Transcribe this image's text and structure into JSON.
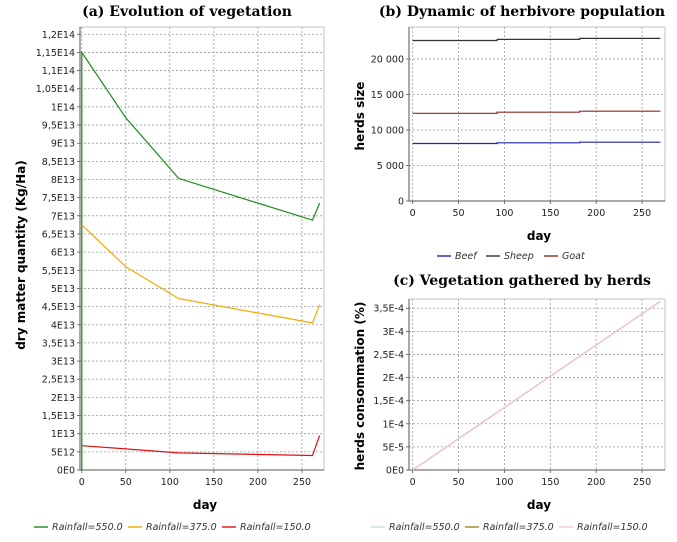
{
  "chart_data": [
    {
      "id": "a",
      "type": "line",
      "title": "(a) Evolution of vegetation",
      "xlabel": "day",
      "ylabel": "dry matter quantity (Kg/Ha)",
      "xlim": [
        -2,
        275
      ],
      "ylim": [
        0,
        122000000000000.0
      ],
      "xticks": [
        0,
        50,
        100,
        150,
        200,
        250
      ],
      "xtick_labels": [
        "0",
        "50",
        "100",
        "150",
        "200",
        "250"
      ],
      "yticks": [
        0,
        5000000000000.0,
        10000000000000.0,
        15000000000000.0,
        20000000000000.0,
        25000000000000.0,
        30000000000000.0,
        35000000000000.0,
        40000000000000.0,
        45000000000000.0,
        50000000000000.0,
        55000000000000.0,
        60000000000000.0,
        65000000000000.0,
        70000000000000.0,
        75000000000000.0,
        80000000000000.0,
        85000000000000.0,
        90000000000000.0,
        95000000000000.0,
        100000000000000.0,
        105000000000000.0,
        110000000000000.0,
        115000000000000.0,
        120000000000000.0
      ],
      "ytick_labels": [
        "0E0",
        "5E12",
        "1E13",
        "1,5E13",
        "2E13",
        "2,5E13",
        "3E13",
        "3,5E13",
        "4E13",
        "4,5E13",
        "5E13",
        "5,5E13",
        "6E13",
        "6,5E13",
        "7E13",
        "7,5E13",
        "8E13",
        "8,5E13",
        "9E13",
        "9,5E13",
        "1E14",
        "1,05E14",
        "1,1E14",
        "1,15E14",
        "1,2E14"
      ],
      "grid": true,
      "legend_position": "bottom",
      "series": [
        {
          "name": "Rainfall=550.0",
          "color": "#1a8a1a",
          "x": [
            0,
            0,
            50,
            110,
            262,
            270
          ],
          "y": [
            0,
            115000000000000.0,
            97000000000000.0,
            80300000000000.0,
            68800000000000.0,
            73500000000000.0
          ]
        },
        {
          "name": "Rainfall=375.0",
          "color": "#f5a800",
          "x": [
            0,
            50,
            110,
            262,
            270
          ],
          "y": [
            67500000000000.0,
            56000000000000.0,
            47200000000000.0,
            40500000000000.0,
            45500000000000.0
          ]
        },
        {
          "name": "Rainfall=150.0",
          "color": "#e01010",
          "x": [
            0,
            50,
            110,
            262,
            270
          ],
          "y": [
            6700000000000.0,
            5800000000000.0,
            4700000000000.0,
            4000000000000.0,
            9500000000000.0
          ]
        }
      ]
    },
    {
      "id": "b",
      "type": "line",
      "title": "(b) Dynamic of herbivore population",
      "xlabel": "day",
      "ylabel": "herds size",
      "xlim": [
        -4,
        275
      ],
      "ylim": [
        0,
        24500
      ],
      "xticks": [
        0,
        50,
        100,
        150,
        200,
        250
      ],
      "xtick_labels": [
        "0",
        "50",
        "100",
        "150",
        "200",
        "250"
      ],
      "yticks": [
        0,
        5000,
        10000,
        15000,
        20000
      ],
      "ytick_labels": [
        "0",
        "5 000",
        "10 000",
        "15 000",
        "20 000"
      ],
      "grid": true,
      "legend_position": "bottom",
      "series": [
        {
          "name": "Beef",
          "color": "#2222aa",
          "x": [
            0,
            92,
            92,
            182,
            182,
            270
          ],
          "y": [
            8100,
            8100,
            8200,
            8200,
            8280,
            8280
          ]
        },
        {
          "name": "Sheep",
          "color": "#333333",
          "x": [
            0,
            92,
            92,
            182,
            182,
            270
          ],
          "y": [
            22600,
            22600,
            22750,
            22750,
            22900,
            22900
          ]
        },
        {
          "name": "Goat",
          "color": "#8b2a22",
          "x": [
            0,
            92,
            92,
            182,
            182,
            270
          ],
          "y": [
            12350,
            12350,
            12500,
            12500,
            12650,
            12650
          ]
        }
      ]
    },
    {
      "id": "c",
      "type": "line",
      "title": "(c) Vegetation gathered by herds",
      "xlabel": "day",
      "ylabel": "herds consommation (%)",
      "xlim": [
        -4,
        275
      ],
      "ylim": [
        0,
        0.00037
      ],
      "xticks": [
        0,
        50,
        100,
        150,
        200,
        250
      ],
      "xtick_labels": [
        "0",
        "50",
        "100",
        "150",
        "200",
        "250"
      ],
      "yticks": [
        0,
        5e-05,
        0.0001,
        0.00015,
        0.0002,
        0.00025,
        0.0003,
        0.00035
      ],
      "ytick_labels": [
        "0E0",
        "5E-5",
        "1E-4",
        "1,5E-4",
        "2E-4",
        "2,5E-4",
        "3E-4",
        "3,5E-4"
      ],
      "grid": true,
      "legend_position": "bottom",
      "series": [
        {
          "name": "Rainfall=550.0",
          "color": "#c8e6c8",
          "x": [
            0,
            270
          ],
          "y": [
            0,
            0.000365
          ]
        },
        {
          "name": "Rainfall=375.0",
          "color": "#a88420",
          "x": [
            0,
            270
          ],
          "y": [
            0,
            0.000365
          ]
        },
        {
          "name": "Rainfall=150.0",
          "color": "#f5c8d6",
          "x": [
            0,
            270
          ],
          "y": [
            0,
            0.000365
          ]
        }
      ]
    }
  ]
}
